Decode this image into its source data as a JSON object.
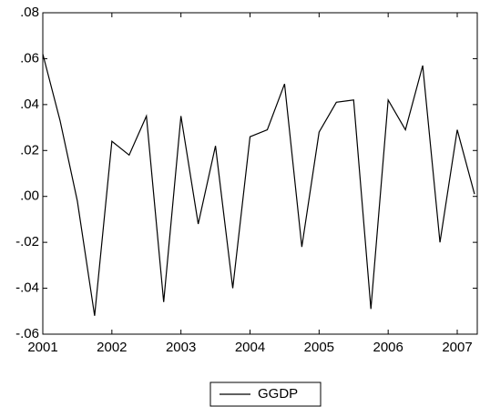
{
  "chart_data": {
    "type": "line",
    "x": [
      2001,
      2001.25,
      2001.5,
      2001.75,
      2002,
      2002.25,
      2002.5,
      2002.75,
      2003,
      2003.25,
      2003.5,
      2003.75,
      2004,
      2004.25,
      2004.5,
      2004.75,
      2005,
      2005.25,
      2005.5,
      2005.75,
      2006,
      2006.25,
      2006.5,
      2006.75,
      2007,
      2007.25
    ],
    "series": [
      {
        "name": "GGDP",
        "color": "#000000",
        "values": [
          0.062,
          0.033,
          -0.002,
          -0.052,
          0.024,
          0.018,
          0.035,
          -0.046,
          0.035,
          -0.012,
          0.022,
          -0.04,
          0.026,
          0.029,
          0.049,
          -0.022,
          0.028,
          0.041,
          0.042,
          -0.049,
          0.042,
          0.029,
          0.057,
          -0.02,
          0.029,
          0.001
        ]
      }
    ],
    "xlim": [
      2001,
      2007.29
    ],
    "xticks": [
      2001,
      2002,
      2003,
      2004,
      2005,
      2006,
      2007
    ],
    "ylim": [
      -0.06,
      0.08
    ],
    "yticks": [
      {
        "value": -0.06,
        "label": "-.06"
      },
      {
        "value": -0.04,
        "label": "-.04"
      },
      {
        "value": -0.02,
        "label": "-.02"
      },
      {
        "value": 0,
        "label": ".00"
      },
      {
        "value": 0.02,
        "label": ".02"
      },
      {
        "value": 0.04,
        "label": ".04"
      },
      {
        "value": 0.06,
        "label": ".06"
      },
      {
        "value": 0.08,
        "label": ".08"
      }
    ],
    "legend": "bottom"
  }
}
